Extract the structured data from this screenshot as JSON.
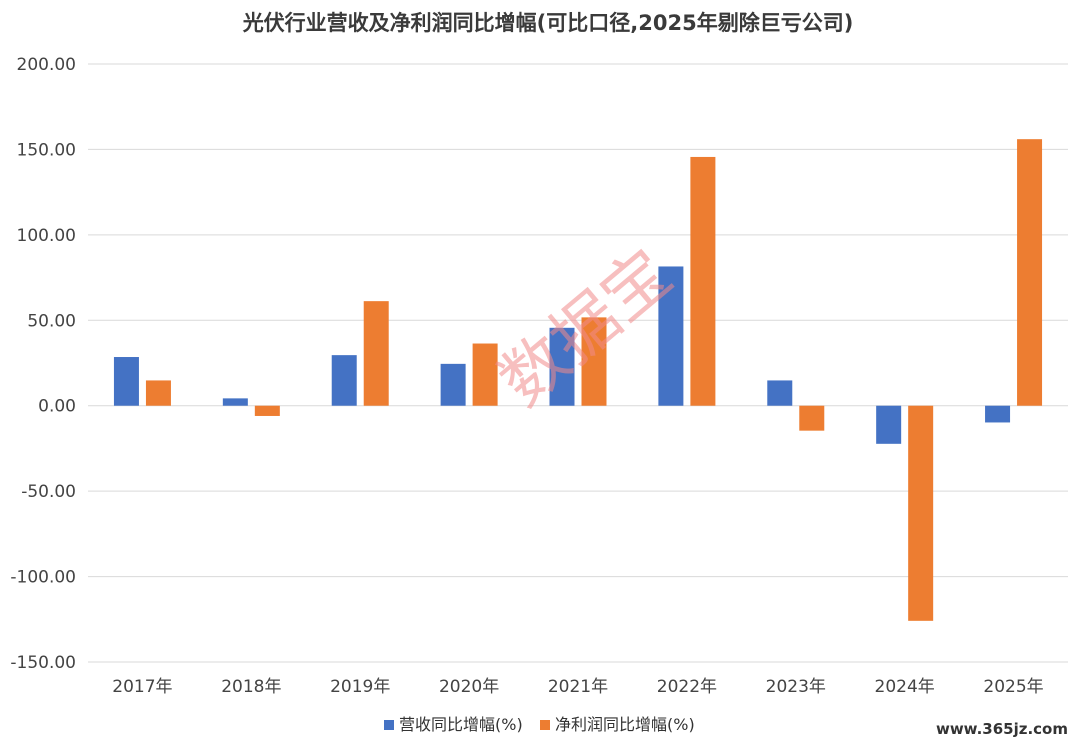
{
  "chart_data": {
    "type": "bar",
    "title": "光伏行业营收及净利润同比增幅(可比口径,2025年剔除巨亏公司)",
    "categories": [
      "2017年",
      "2018年",
      "2019年",
      "2020年",
      "2021年",
      "2022年",
      "2023年",
      "2024年",
      "2025年"
    ],
    "series": [
      {
        "name": "营收同比增幅(%)",
        "color": "#4472c4",
        "values": [
          28.5,
          4.3,
          29.6,
          24.5,
          45.6,
          81.5,
          14.8,
          -22.3,
          -9.8
        ]
      },
      {
        "name": "净利润同比增幅(%)",
        "color": "#ed7d31",
        "values": [
          14.8,
          -6.0,
          61.2,
          36.4,
          51.7,
          145.6,
          -14.6,
          -125.9,
          156.0
        ]
      }
    ],
    "ylim": [
      -150,
      200
    ],
    "yticks": [
      "200.00",
      "150.00",
      "100.00",
      "50.00",
      "0.00",
      "-50.00",
      "-100.00",
      "-150.00"
    ],
    "grid": true,
    "legend": "bottom"
  },
  "watermark": "数据宝",
  "site_mark": "www.365jz.com"
}
